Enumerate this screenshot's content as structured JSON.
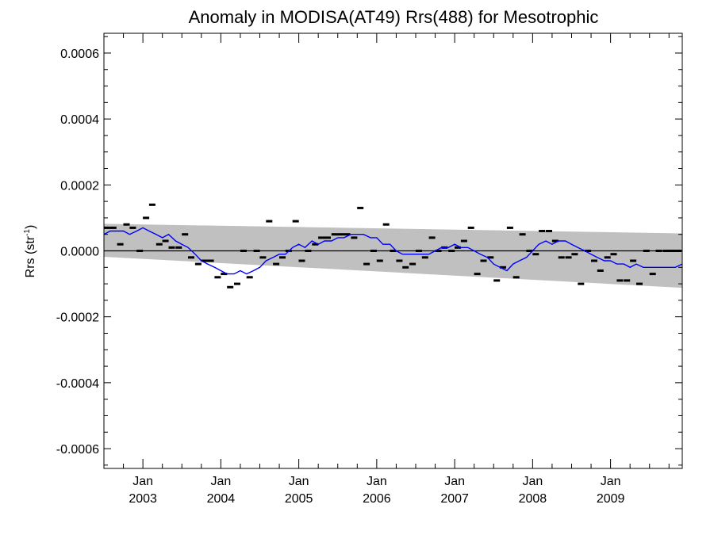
{
  "chart_data": {
    "type": "scatter",
    "title": "Anomaly in MODISA(AT49) Rrs(488) for Mesotrophic",
    "ylabel_main": "Rrs (str",
    "ylabel_sup": "-1",
    "ylabel_close": ")",
    "xlabel": "",
    "x_unit": "decimal year",
    "xlim": [
      2002.5,
      2009.92
    ],
    "ylim": [
      -0.00066,
      0.00066
    ],
    "y_ticks": [
      -0.0006,
      -0.0004,
      -0.0002,
      0.0,
      0.0002,
      0.0004,
      0.0006
    ],
    "y_tick_labels": [
      "-0.0006",
      "-0.0004",
      "-0.0002",
      "0.0000",
      "0.0002",
      "0.0004",
      "0.0006"
    ],
    "x_ticks": [
      {
        "x": 2003.0,
        "month": "Jan",
        "year": "2003"
      },
      {
        "x": 2004.0,
        "month": "Jan",
        "year": "2004"
      },
      {
        "x": 2005.0,
        "month": "Jan",
        "year": "2005"
      },
      {
        "x": 2006.0,
        "month": "Jan",
        "year": "2006"
      },
      {
        "x": 2007.0,
        "month": "Jan",
        "year": "2007"
      },
      {
        "x": 2008.0,
        "month": "Jan",
        "year": "2008"
      },
      {
        "x": 2009.0,
        "month": "Jan",
        "year": "2009"
      }
    ],
    "zero_line": 0.0,
    "confidence_band": {
      "x": [
        2002.5,
        2009.92
      ],
      "upper": [
        8.2e-05,
        5.3e-05
      ],
      "lower": [
        -1.8e-05,
        -0.000112
      ],
      "color": "#c0c0c0"
    },
    "series": [
      {
        "style": "markers",
        "color": "#000000",
        "x": [
          2002.54,
          2002.62,
          2002.71,
          2002.79,
          2002.87,
          2002.96,
          2003.04,
          2003.12,
          2003.21,
          2003.29,
          2003.37,
          2003.46,
          2003.54,
          2003.62,
          2003.71,
          2003.79,
          2003.87,
          2003.96,
          2004.04,
          2004.12,
          2004.21,
          2004.29,
          2004.37,
          2004.46,
          2004.54,
          2004.62,
          2004.71,
          2004.79,
          2004.87,
          2004.96,
          2005.04,
          2005.12,
          2005.21,
          2005.29,
          2005.37,
          2005.46,
          2005.54,
          2005.62,
          2005.71,
          2005.79,
          2005.87,
          2005.96,
          2006.04,
          2006.12,
          2006.21,
          2006.29,
          2006.37,
          2006.46,
          2006.54,
          2006.62,
          2006.71,
          2006.79,
          2006.87,
          2006.96,
          2007.04,
          2007.12,
          2007.21,
          2007.29,
          2007.37,
          2007.46,
          2007.54,
          2007.62,
          2007.71,
          2007.79,
          2007.87,
          2007.96,
          2008.04,
          2008.12,
          2008.21,
          2008.29,
          2008.37,
          2008.46,
          2008.54,
          2008.62,
          2008.71,
          2008.79,
          2008.87,
          2008.96,
          2009.04,
          2009.12,
          2009.21,
          2009.29,
          2009.37,
          2009.46,
          2009.54,
          2009.62,
          2009.71,
          2009.79,
          2009.87
        ],
        "y": [
          7e-05,
          7e-05,
          2e-05,
          8e-05,
          7e-05,
          0.0,
          0.0001,
          0.00014,
          2e-05,
          3e-05,
          1e-05,
          1e-05,
          5e-05,
          -2e-05,
          -4e-05,
          -3e-05,
          -3e-05,
          -8e-05,
          -7e-05,
          -0.00011,
          -0.0001,
          0.0,
          -8e-05,
          0.0,
          -2e-05,
          9e-05,
          -4e-05,
          -2e-05,
          0.0,
          9e-05,
          -3e-05,
          0.0,
          2e-05,
          4e-05,
          4e-05,
          5e-05,
          5e-05,
          5e-05,
          4e-05,
          0.00013,
          -4e-05,
          0.0,
          -3e-05,
          8e-05,
          0.0,
          -3e-05,
          -5e-05,
          -4e-05,
          0.0,
          -2e-05,
          4e-05,
          0.0,
          1e-05,
          0.0,
          1e-05,
          3e-05,
          7e-05,
          -7e-05,
          -3e-05,
          -2e-05,
          -9e-05,
          -5e-05,
          7e-05,
          -8e-05,
          5e-05,
          0.0,
          -1e-05,
          6e-05,
          6e-05,
          3e-05,
          -2e-05,
          -2e-05,
          -1e-05,
          -0.0001,
          0.0,
          -3e-05,
          -6e-05,
          -2e-05,
          -1e-05,
          -9e-05,
          -9e-05,
          -3e-05,
          -0.0001,
          0.0,
          -7e-05,
          0.0,
          0.0,
          0.0,
          0.0
        ]
      },
      {
        "style": "line",
        "color": "#0000ff",
        "x": [
          2002.5,
          2002.58,
          2002.67,
          2002.75,
          2002.83,
          2002.92,
          2003.0,
          2003.08,
          2003.17,
          2003.25,
          2003.33,
          2003.42,
          2003.5,
          2003.58,
          2003.67,
          2003.75,
          2003.83,
          2003.92,
          2004.0,
          2004.08,
          2004.17,
          2004.25,
          2004.33,
          2004.42,
          2004.5,
          2004.58,
          2004.67,
          2004.75,
          2004.83,
          2004.92,
          2005.0,
          2005.08,
          2005.17,
          2005.25,
          2005.33,
          2005.42,
          2005.5,
          2005.58,
          2005.67,
          2005.75,
          2005.83,
          2005.92,
          2006.0,
          2006.08,
          2006.17,
          2006.25,
          2006.33,
          2006.42,
          2006.5,
          2006.58,
          2006.67,
          2006.75,
          2006.83,
          2006.92,
          2007.0,
          2007.08,
          2007.17,
          2007.25,
          2007.33,
          2007.42,
          2007.5,
          2007.58,
          2007.67,
          2007.75,
          2007.83,
          2007.92,
          2008.0,
          2008.08,
          2008.17,
          2008.25,
          2008.33,
          2008.42,
          2008.5,
          2008.58,
          2008.67,
          2008.75,
          2008.83,
          2008.92,
          2009.0,
          2009.08,
          2009.17,
          2009.25,
          2009.33,
          2009.42,
          2009.5,
          2009.58,
          2009.67,
          2009.75,
          2009.83,
          2009.92
        ],
        "y": [
          5e-05,
          6e-05,
          6e-05,
          6e-05,
          5e-05,
          6e-05,
          7e-05,
          6e-05,
          5e-05,
          4e-05,
          5e-05,
          3e-05,
          2e-05,
          1e-05,
          -1e-05,
          -3e-05,
          -4e-05,
          -5e-05,
          -6e-05,
          -7e-05,
          -7e-05,
          -6e-05,
          -7e-05,
          -6e-05,
          -5e-05,
          -3e-05,
          -2e-05,
          -1e-05,
          -1e-05,
          1e-05,
          2e-05,
          1e-05,
          3e-05,
          2e-05,
          3e-05,
          3e-05,
          4e-05,
          4e-05,
          5e-05,
          5e-05,
          5e-05,
          4e-05,
          4e-05,
          2e-05,
          2e-05,
          0.0,
          -1e-05,
          -1e-05,
          -1e-05,
          -1e-05,
          -1e-05,
          0.0,
          1e-05,
          1e-05,
          2e-05,
          1e-05,
          1e-05,
          0.0,
          -1e-05,
          -2e-05,
          -4e-05,
          -5e-05,
          -6e-05,
          -4e-05,
          -3e-05,
          -2e-05,
          0.0,
          2e-05,
          3e-05,
          2e-05,
          3e-05,
          3e-05,
          2e-05,
          1e-05,
          0.0,
          -1e-05,
          -2e-05,
          -3e-05,
          -3e-05,
          -4e-05,
          -4e-05,
          -5e-05,
          -4e-05,
          -5e-05,
          -5e-05,
          -5e-05,
          -5e-05,
          -5e-05,
          -5e-05,
          -4e-05
        ]
      }
    ],
    "grid": false,
    "legend": "none"
  }
}
